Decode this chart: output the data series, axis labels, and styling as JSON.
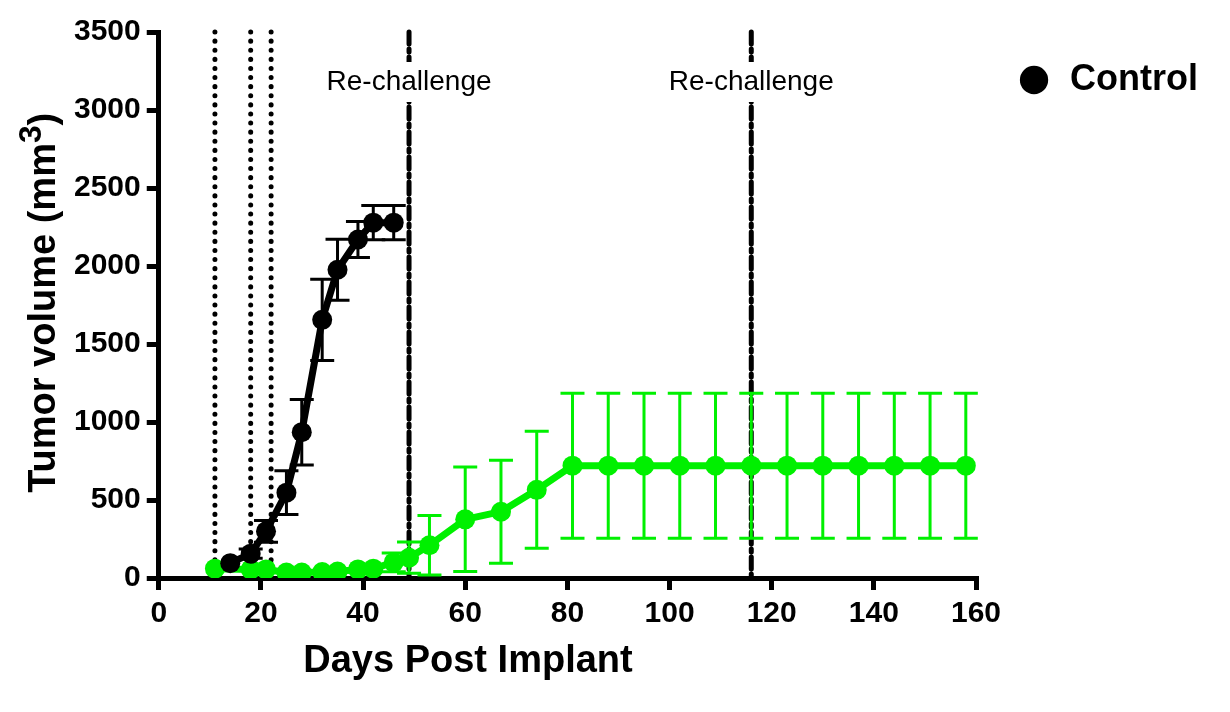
{
  "chart_data": {
    "type": "line",
    "xlabel": "Days Post Implant",
    "ylabel": "Tumor volume (mm$^{3}$)",
    "xlim": [
      0,
      160
    ],
    "xticks": [
      0,
      20,
      40,
      60,
      80,
      100,
      120,
      140,
      160
    ],
    "ylim": [
      0,
      3500
    ],
    "yticks": [
      0,
      500,
      1000,
      1500,
      2000,
      2500,
      3000,
      3500
    ],
    "grid": false,
    "legend": "right",
    "marker": "circle",
    "line_style": "solid",
    "series": [
      {
        "name": "Control",
        "color": "#000000",
        "x": [
          14,
          18,
          21,
          25,
          28,
          32,
          35,
          39,
          42,
          46
        ],
        "values": [
          95,
          156,
          299,
          547,
          935,
          1655,
          1976,
          2170,
          2278,
          2278
        ],
        "errors": [
          null,
          30,
          70,
          140,
          210,
          260,
          195,
          115,
          110,
          110
        ]
      },
      {
        "color": "#00f000",
        "x": [
          11,
          14,
          18,
          21,
          25,
          28,
          32,
          35,
          39,
          42,
          46,
          49,
          53,
          60,
          67,
          74,
          81,
          88,
          95,
          102,
          109,
          116,
          123,
          130,
          137,
          144,
          151,
          158
        ],
        "values": [
          60,
          null,
          55,
          55,
          35,
          35,
          38,
          42,
          55,
          60,
          100,
          130,
          210,
          376,
          425,
          565,
          720,
          720,
          720,
          720,
          720,
          720,
          720,
          720,
          720,
          720,
          720,
          720
        ],
        "errors": [
          null,
          null,
          null,
          null,
          null,
          null,
          null,
          null,
          null,
          null,
          60,
          100,
          190,
          335,
          330,
          375,
          465,
          465,
          465,
          465,
          465,
          465,
          465,
          465,
          465,
          465,
          465,
          465
        ]
      }
    ],
    "ref_lines": [
      {
        "axis": "x",
        "value": 11,
        "color": "#000000",
        "line_style": "dotted"
      },
      {
        "axis": "x",
        "value": 18,
        "color": "#000000",
        "line_style": "dotted"
      },
      {
        "axis": "x",
        "value": 22,
        "color": "#000000",
        "line_style": "dotted"
      },
      {
        "axis": "x",
        "value": 49,
        "label": "Re-challenge",
        "color": "#000000",
        "line_style": "dashed"
      },
      {
        "axis": "x",
        "value": 116,
        "label": "Re-challenge",
        "color": "#000000",
        "line_style": "dashed"
      }
    ]
  }
}
